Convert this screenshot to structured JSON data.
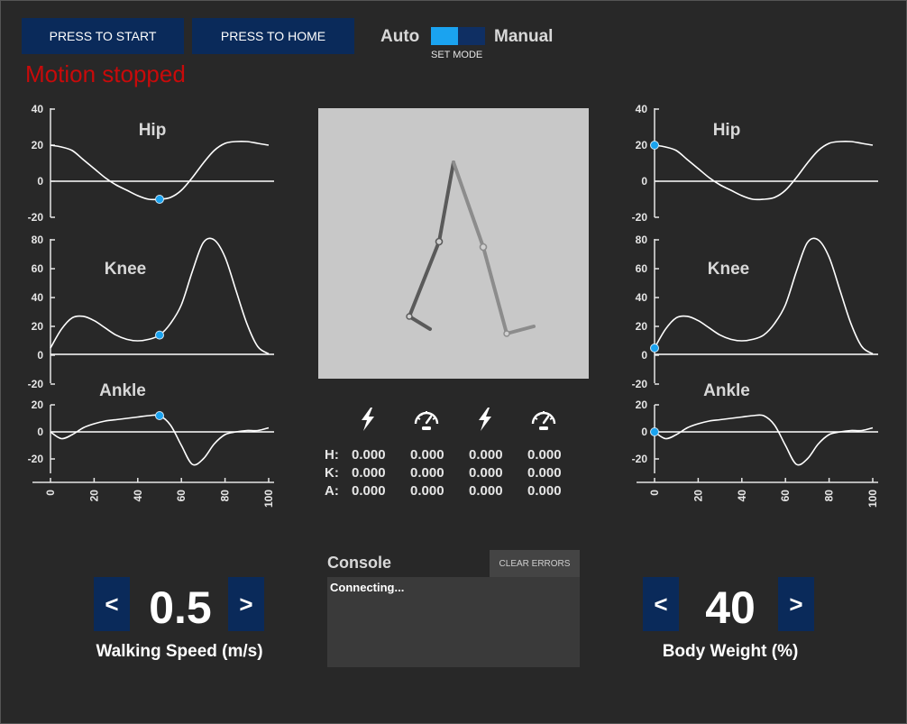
{
  "toolbar": {
    "start_label": "PRESS TO START",
    "home_label": "PRESS TO HOME",
    "mode_auto": "Auto",
    "mode_manual": "Manual",
    "set_mode": "SET MODE",
    "mode_value": "Auto"
  },
  "status": {
    "text": "Motion stopped",
    "color": "#c80a0a"
  },
  "plots": {
    "hip_title": "Hip",
    "knee_title": "Knee",
    "ankle_title": "Ankle",
    "hip_ticks": [
      "40",
      "20",
      "0",
      "-20"
    ],
    "knee_ticks": [
      "80",
      "60",
      "40",
      "20",
      "0",
      "-20"
    ],
    "ankle_ticks": [
      "20",
      "0",
      "-20"
    ],
    "x_ticks": [
      "0",
      "20",
      "40",
      "60",
      "80",
      "100"
    ],
    "cursor_color": "#1aa3f0",
    "left_cursor_gait_percent": 50,
    "right_cursor_gait_percent": 0
  },
  "chart_data": [
    {
      "type": "line",
      "title": "Hip",
      "ylim": [
        -20,
        40
      ],
      "xlim": [
        0,
        100
      ],
      "x": [
        0,
        5,
        10,
        15,
        20,
        25,
        30,
        35,
        40,
        45,
        50,
        55,
        60,
        65,
        70,
        75,
        80,
        85,
        90,
        95,
        100
      ],
      "values": [
        20,
        19,
        17,
        12,
        7,
        2,
        -2,
        -5,
        -8,
        -10,
        -10,
        -9,
        -5,
        2,
        10,
        17,
        21,
        22,
        22,
        21,
        20
      ]
    },
    {
      "type": "line",
      "title": "Knee",
      "ylim": [
        -20,
        80
      ],
      "xlim": [
        0,
        100
      ],
      "x": [
        0,
        5,
        10,
        15,
        20,
        25,
        30,
        35,
        40,
        45,
        50,
        55,
        60,
        65,
        70,
        75,
        80,
        85,
        90,
        95,
        100
      ],
      "values": [
        5,
        18,
        26,
        27,
        24,
        19,
        14,
        11,
        10,
        11,
        14,
        22,
        35,
        58,
        78,
        80,
        68,
        45,
        22,
        6,
        1
      ]
    },
    {
      "type": "line",
      "title": "Ankle",
      "ylim": [
        -20,
        20
      ],
      "xlim": [
        0,
        100
      ],
      "x": [
        0,
        5,
        10,
        15,
        20,
        25,
        30,
        35,
        40,
        45,
        50,
        55,
        60,
        65,
        70,
        75,
        80,
        85,
        90,
        95,
        100
      ],
      "values": [
        0,
        -5,
        -2,
        3,
        6,
        8,
        9,
        10,
        11,
        12,
        12,
        5,
        -10,
        -24,
        -20,
        -9,
        -2,
        0,
        1,
        1,
        3
      ]
    }
  ],
  "readout": {
    "row_labels": [
      "H:",
      "K:",
      "A:"
    ],
    "icons": [
      "lightning-icon",
      "speedometer-icon",
      "lightning-icon",
      "speedometer-icon"
    ],
    "values": [
      [
        "0.000",
        "0.000",
        "0.000",
        "0.000"
      ],
      [
        "0.000",
        "0.000",
        "0.000",
        "0.000"
      ],
      [
        "0.000",
        "0.000",
        "0.000",
        "0.000"
      ]
    ]
  },
  "console": {
    "title": "Console",
    "clear_label": "CLEAR ERRORS",
    "text": "Connecting..."
  },
  "walking_speed": {
    "dec": "<",
    "value": "0.5",
    "inc": ">",
    "label": "Walking Speed (m/s)"
  },
  "body_weight": {
    "dec": "<",
    "value": "40",
    "inc": ">",
    "label": "Body Weight (%)"
  },
  "colors": {
    "button_bg": "#0a2a5a",
    "accent": "#1aa3f0",
    "background": "#282828"
  }
}
